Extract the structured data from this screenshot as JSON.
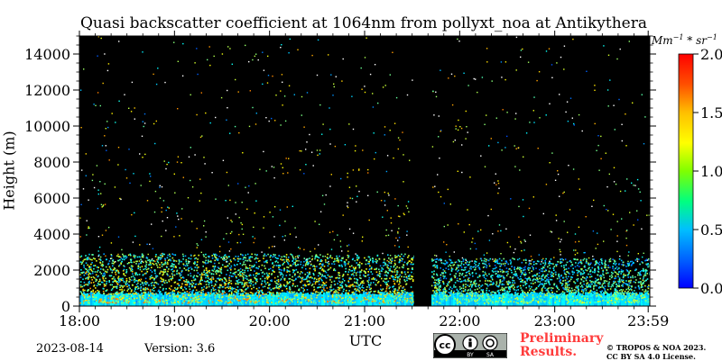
{
  "chart_data": {
    "type": "heatmap",
    "title": "Quasi backscatter coefficient at 1064nm from pollyxt_noa at Antikythera",
    "xlabel": "UTC",
    "ylabel": "Height (m)",
    "x_range": [
      "18:00",
      "23:59"
    ],
    "x_ticks": [
      "18:00",
      "19:00",
      "20:00",
      "21:00",
      "22:00",
      "23:00",
      "23:59"
    ],
    "x_tick_hours": [
      18.0,
      19.0,
      20.0,
      21.0,
      22.0,
      23.0,
      23.983
    ],
    "ylim": [
      0,
      15000
    ],
    "y_ticks": [
      0,
      2000,
      4000,
      6000,
      8000,
      10000,
      12000,
      14000
    ],
    "colorbar": {
      "unit": "Mm^-1 * sr^-1",
      "range": [
        0.0,
        2.0
      ],
      "ticks": [
        "0.0",
        "0.5",
        "1.0",
        "1.5",
        "2.0"
      ],
      "tick_values": [
        0.0,
        0.5,
        1.0,
        1.5,
        2.0
      ]
    },
    "data_gap": {
      "start_hour": 21.52,
      "end_hour": 21.7
    },
    "background_color": "#000000",
    "layers": [
      {
        "name": "near-surface",
        "height_top_m": 700,
        "level": 0.3
      },
      {
        "name": "boundary layer",
        "height_top_m": 2600,
        "level": 0.9
      },
      {
        "name": "sparse noise",
        "height_top_m": 15000,
        "level": 0.8
      }
    ]
  },
  "footer": {
    "date": "2023-08-14",
    "version": "Version: 3.6",
    "preliminary": [
      "Preliminary",
      "Results."
    ],
    "copyright": [
      "© TROPOS & NOA 2023.",
      "CC BY SA 4.0 License."
    ]
  },
  "badge": {
    "cc": "cc",
    "by": "BY",
    "sa": "SA"
  }
}
